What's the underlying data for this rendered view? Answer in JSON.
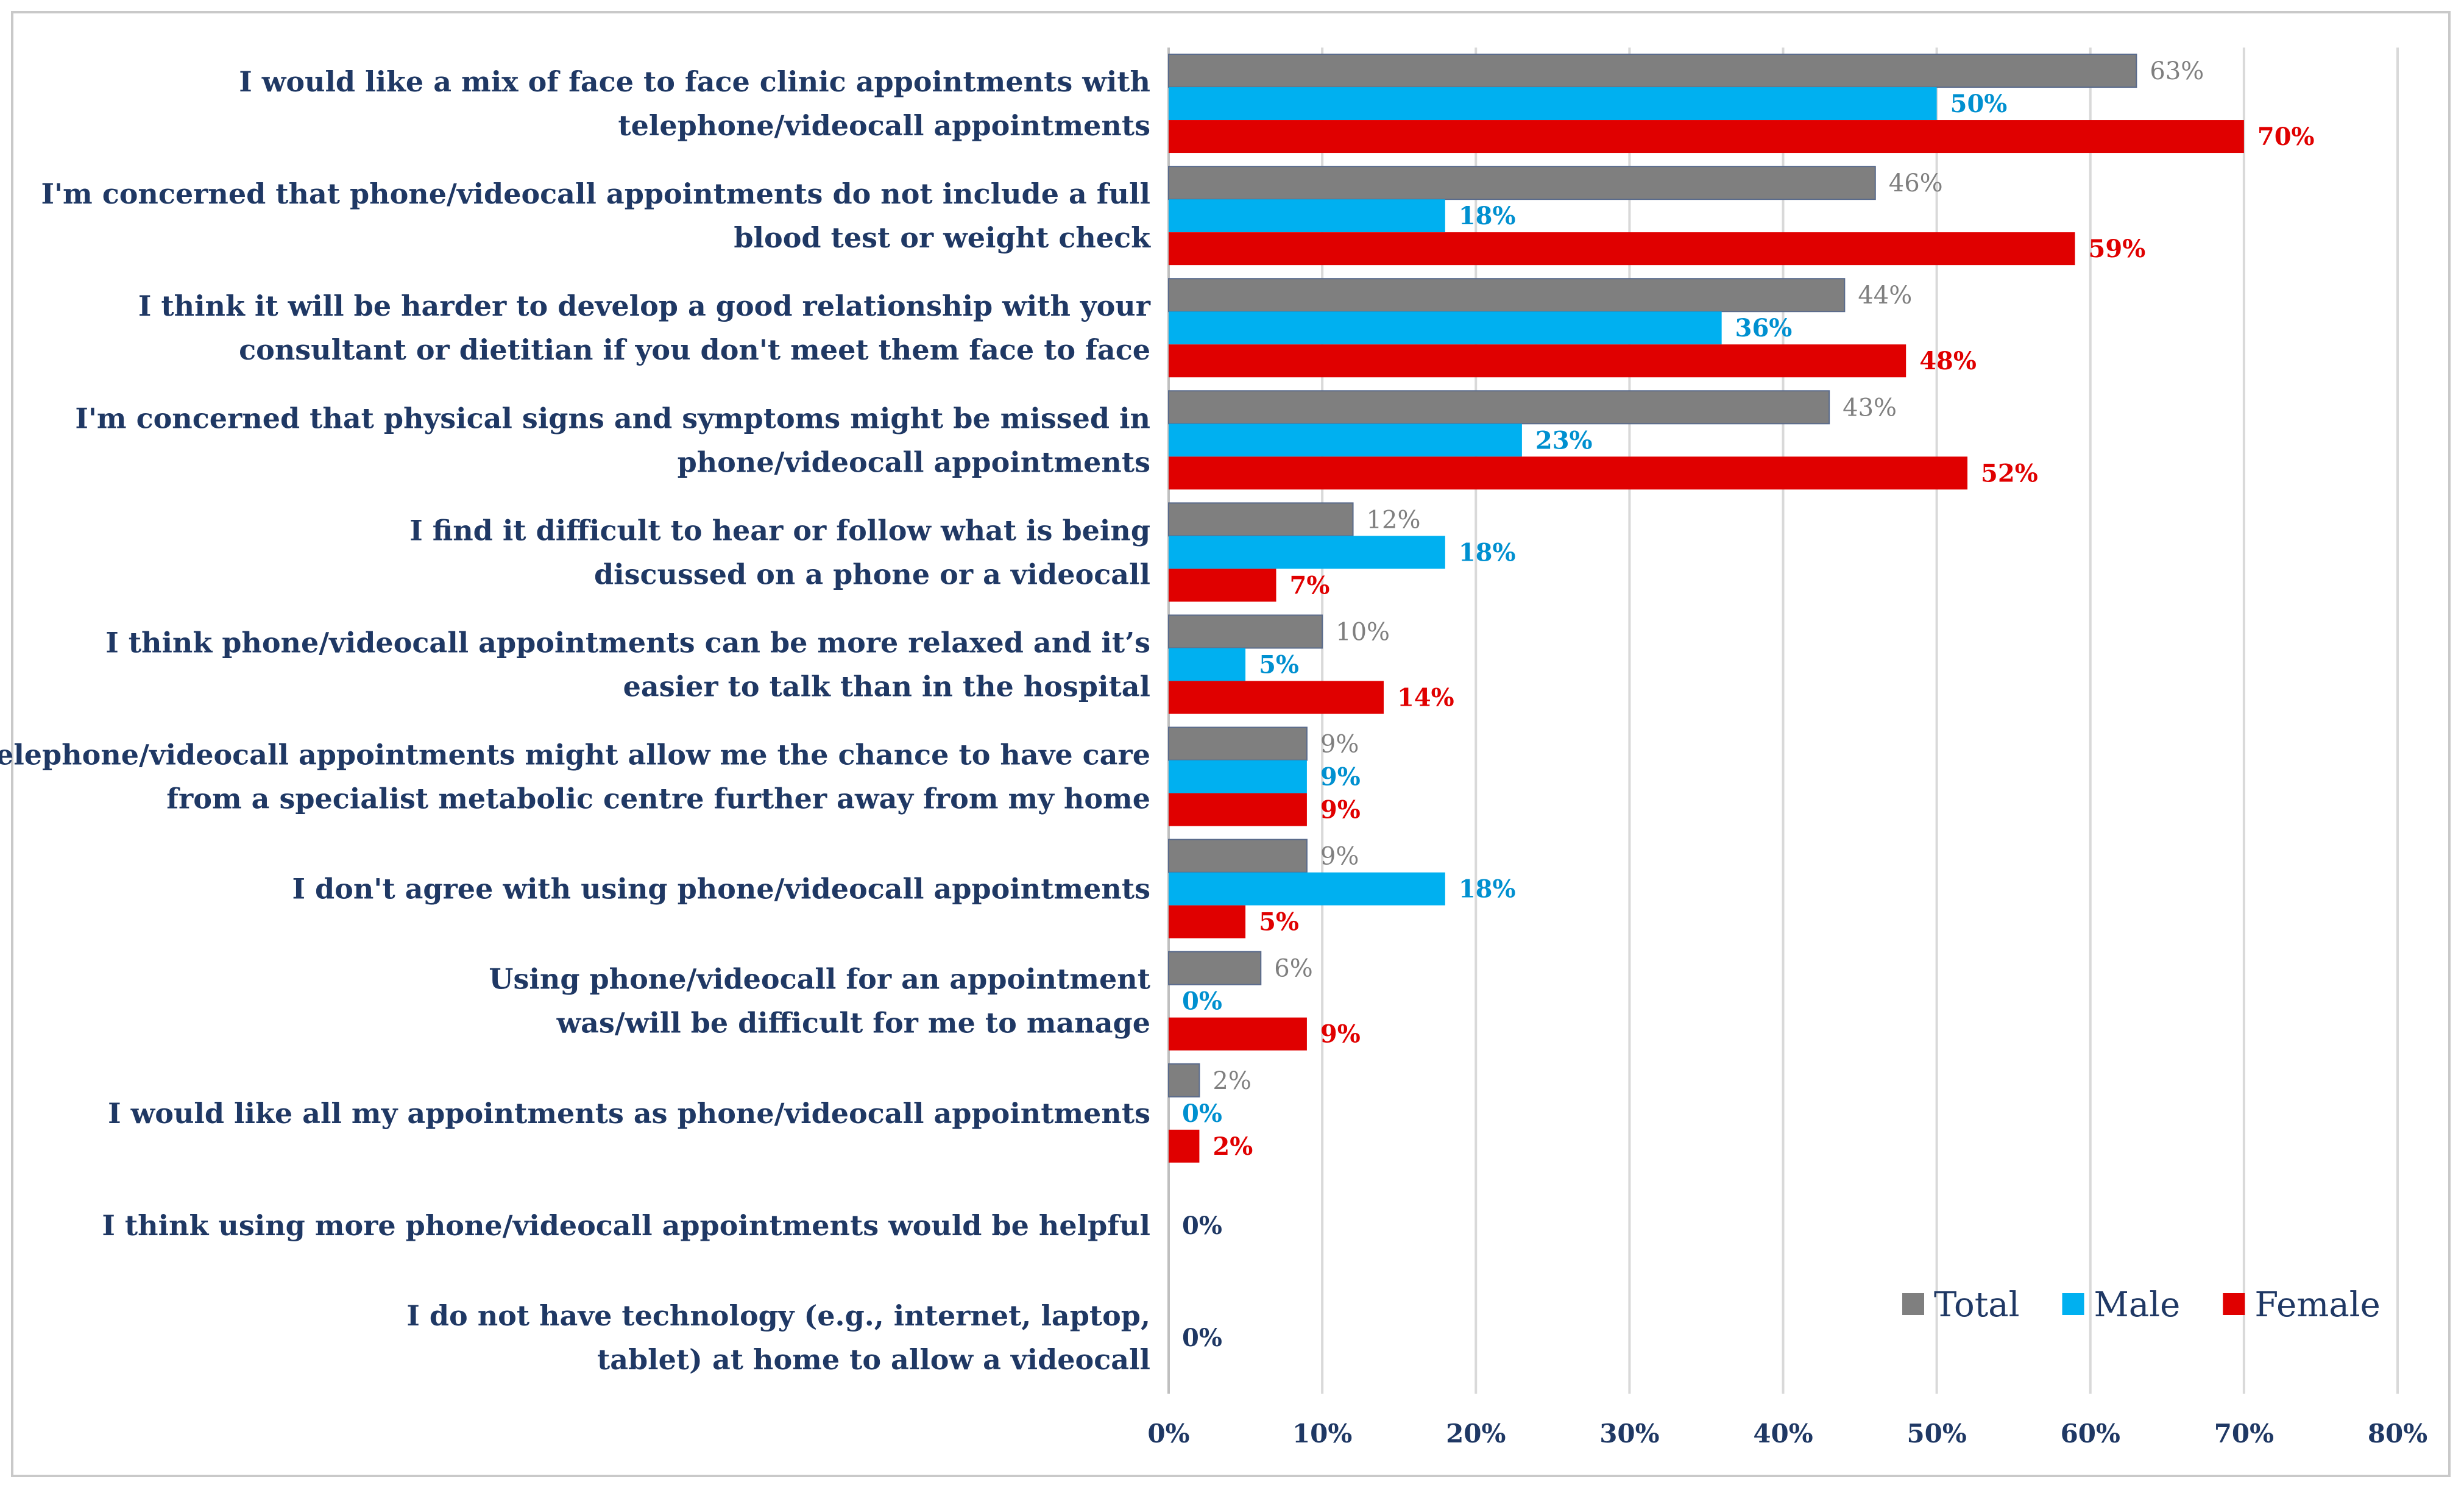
{
  "chart_data": {
    "type": "bar",
    "orientation": "horizontal",
    "title": "",
    "xlabel": "",
    "ylabel": "",
    "xlim": [
      0,
      80
    ],
    "x_ticks": [
      "0%",
      "10%",
      "20%",
      "30%",
      "40%",
      "50%",
      "60%",
      "70%",
      "80%"
    ],
    "grid": true,
    "legend_position": "bottom-right",
    "categories": [
      [
        "I would like a mix of face to face clinic appointments with",
        "telephone/videocall appointments"
      ],
      [
        "I'm concerned that phone/videocall appointments do not include a full",
        "blood test or weight check"
      ],
      [
        "I think it will be harder to develop a good relationship with your",
        "consultant or dietitian if you don't meet them face to face"
      ],
      [
        "I'm concerned that physical signs and symptoms might be missed in",
        "phone/videocall appointments"
      ],
      [
        "I find it difficult to hear or follow what is being",
        "discussed on a phone or a videocall"
      ],
      [
        "I think phone/videocall appointments can be more relaxed and it’s",
        "easier to talk than in the hospital"
      ],
      [
        "Telephone/videocall appointments might allow me the chance to have care",
        "from a specialist metabolic centre further away from my home"
      ],
      [
        "I don't agree with using phone/videocall appointments"
      ],
      [
        "Using phone/videocall for an appointment",
        "was/will be difficult for me to manage"
      ],
      [
        "I would like all my appointments as phone/videocall appointments"
      ],
      [
        "I think using more phone/videocall appointments would be helpful"
      ],
      [
        "I do not have technology (e.g., internet, laptop,",
        "tablet) at home to allow a videocall"
      ]
    ],
    "series": [
      {
        "name": "Total",
        "color": "#7f7f7f",
        "values": [
          63,
          46,
          44,
          43,
          12,
          10,
          9,
          9,
          6,
          2,
          null,
          null
        ],
        "labels": [
          "63%",
          "46%",
          "44%",
          "43%",
          "12%",
          "10%",
          "9%",
          "9%",
          "6%",
          "2%",
          null,
          null
        ]
      },
      {
        "name": "Male",
        "color": "#00b0f0",
        "values": [
          50,
          18,
          36,
          23,
          18,
          5,
          9,
          18,
          0,
          0,
          null,
          null
        ],
        "labels": [
          "50%",
          "18%",
          "36%",
          "23%",
          "18%",
          "5%",
          "9%",
          "18%",
          "0%",
          "0%",
          null,
          null
        ]
      },
      {
        "name": "Female",
        "color": "#e00000",
        "values": [
          70,
          59,
          48,
          52,
          7,
          14,
          9,
          5,
          9,
          2,
          null,
          null
        ],
        "labels": [
          "70%",
          "59%",
          "48%",
          "52%",
          "7%",
          "14%",
          "9%",
          "5%",
          "9%",
          "2%",
          null,
          null
        ]
      }
    ],
    "category_zero_labels": [
      null,
      null,
      null,
      null,
      null,
      null,
      null,
      null,
      null,
      null,
      "0%",
      "0%"
    ]
  }
}
